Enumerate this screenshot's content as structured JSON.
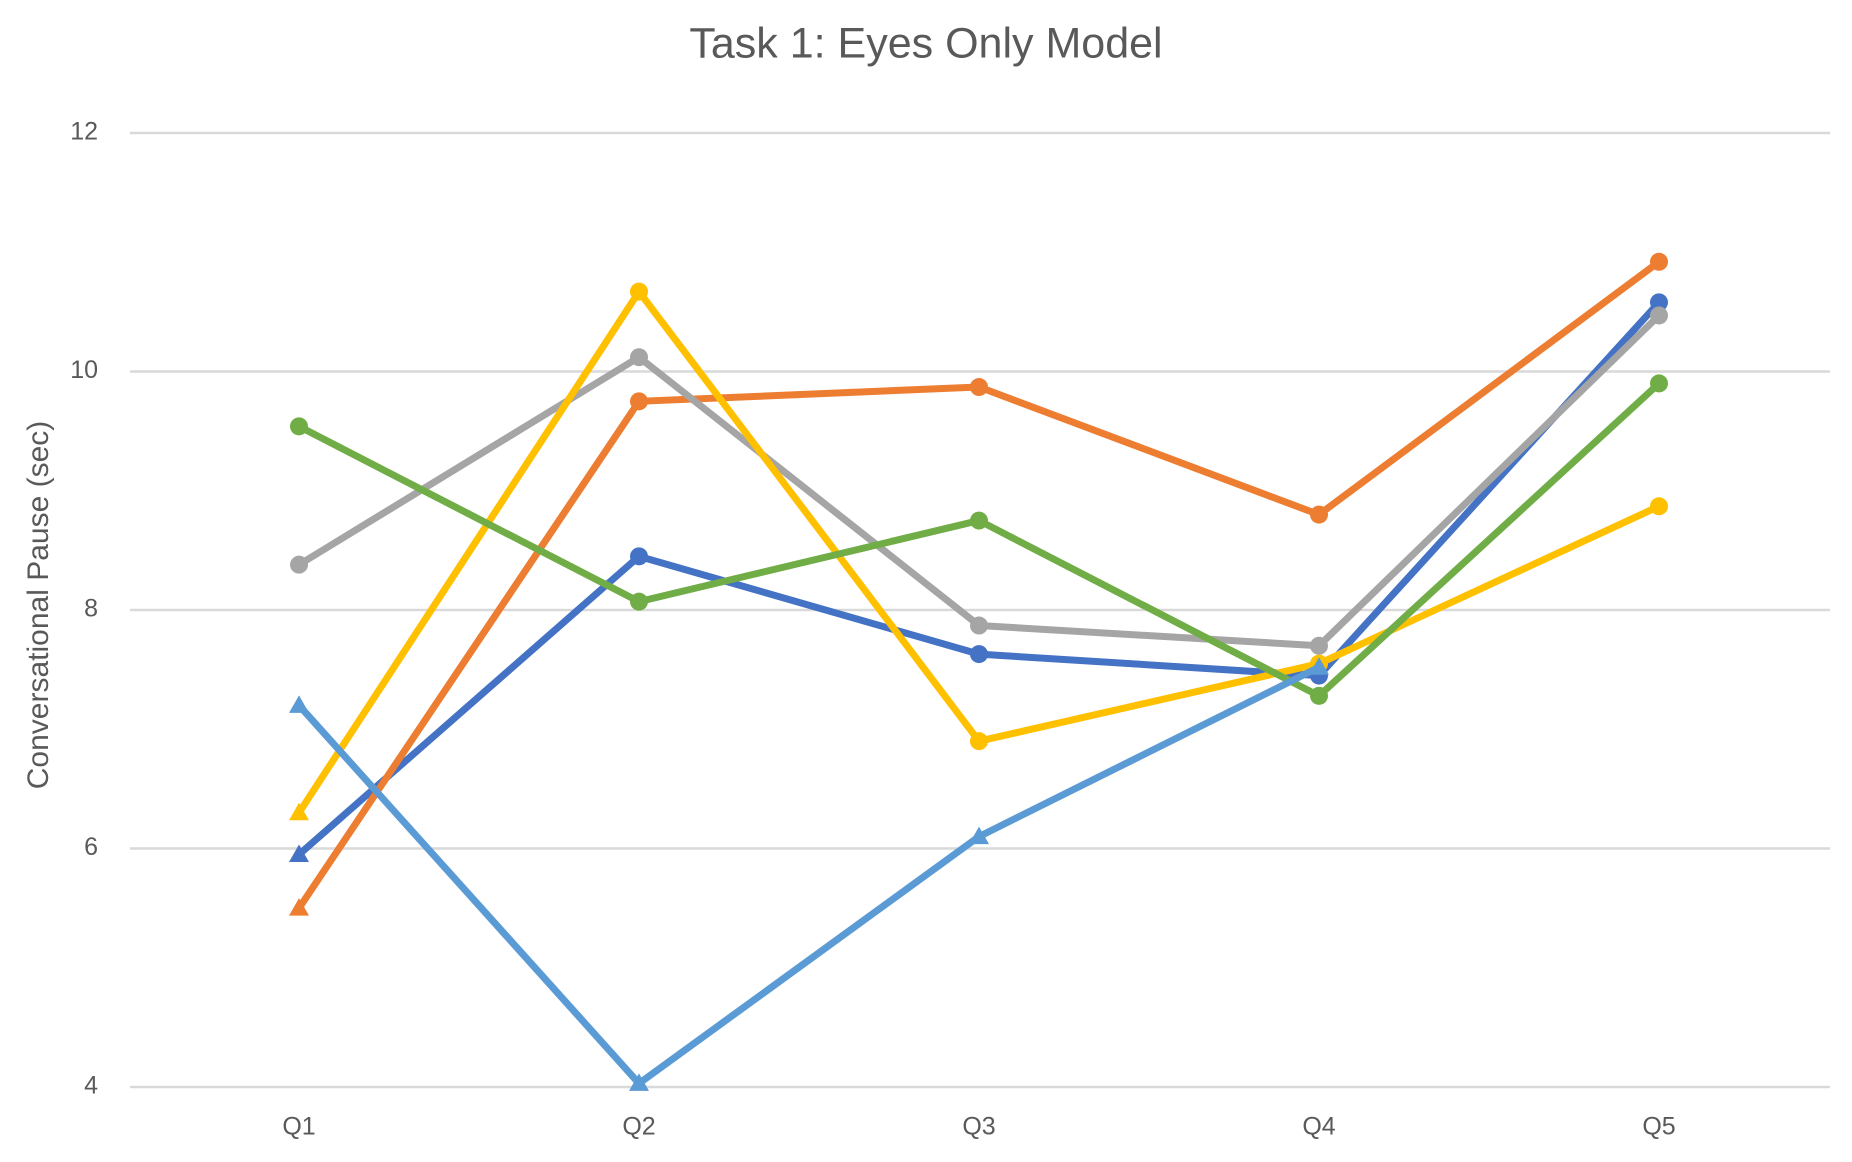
{
  "chart_data": {
    "type": "line",
    "title": "Task 1: Eyes Only Model",
    "xlabel": "",
    "ylabel": "Conversational Pause (sec)",
    "categories": [
      "Q1",
      "Q2",
      "Q3",
      "Q4",
      "Q5"
    ],
    "ylim": [
      4,
      12
    ],
    "yticks": [
      4,
      6,
      8,
      10,
      12
    ],
    "grid": true,
    "legend": "none",
    "series": [
      {
        "color": "#4472C4",
        "marker_start": "triangle",
        "marker": "circle",
        "values": [
          5.95,
          8.45,
          7.63,
          7.45,
          10.58
        ]
      },
      {
        "color": "#ED7D31",
        "marker_start": "triangle",
        "marker": "circle",
        "values": [
          5.5,
          9.75,
          9.87,
          8.8,
          10.92
        ]
      },
      {
        "color": "#A5A5A5",
        "marker_start": "circle",
        "marker": "circle",
        "values": [
          8.38,
          10.12,
          7.87,
          7.7,
          10.47
        ]
      },
      {
        "color": "#FFC000",
        "marker_start": "triangle",
        "marker": "circle",
        "values": [
          6.3,
          10.67,
          6.9,
          7.55,
          8.87
        ]
      },
      {
        "color": "#70AD47",
        "marker_start": "circle",
        "marker": "circle",
        "values": [
          9.54,
          8.07,
          8.75,
          7.28,
          9.9
        ]
      },
      {
        "color": "#5B9BD5",
        "marker_start": "triangle",
        "marker": "triangle",
        "values": [
          7.2,
          4.03,
          6.1,
          7.52,
          null
        ]
      }
    ]
  }
}
